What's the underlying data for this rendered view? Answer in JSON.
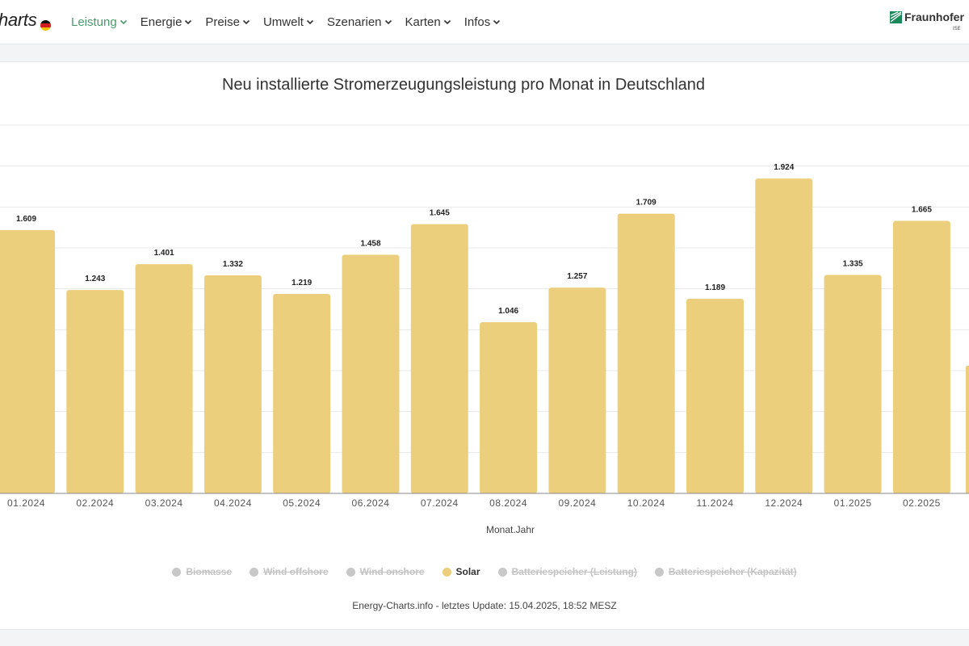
{
  "header": {
    "brand": "harts",
    "nav": [
      {
        "label": "Leistung",
        "active": true
      },
      {
        "label": "Energie",
        "active": false
      },
      {
        "label": "Preise",
        "active": false
      },
      {
        "label": "Umwelt",
        "active": false
      },
      {
        "label": "Szenarien",
        "active": false
      },
      {
        "label": "Karten",
        "active": false
      },
      {
        "label": "Infos",
        "active": false
      }
    ],
    "logo_text": "Fraunhofer",
    "logo_sub": "ISE"
  },
  "chart_data": {
    "type": "bar",
    "title": "Neu installierte Stromerzeugungsleistung pro Monat in Deutschland",
    "xlabel": "Monat.Jahr",
    "ylabel": "",
    "categories": [
      "01.2024",
      "02.2024",
      "03.2024",
      "04.2024",
      "05.2024",
      "06.2024",
      "07.2024",
      "08.2024",
      "09.2024",
      "10.2024",
      "11.2024",
      "12.2024",
      "01.2025",
      "02.2025"
    ],
    "series": [
      {
        "name": "Solar",
        "color": "#eccf7c",
        "values": [
          1.609,
          1.243,
          1.401,
          1.332,
          1.219,
          1.458,
          1.645,
          1.046,
          1.257,
          1.709,
          1.189,
          1.924,
          1.335,
          1.665
        ]
      }
    ],
    "value_labels": [
      "1.609",
      "1.243",
      "1.401",
      "1.332",
      "1.219",
      "1.458",
      "1.645",
      "1.046",
      "1.257",
      "1.709",
      "1.189",
      "1.924",
      "1.335",
      "1.665"
    ],
    "ylim": [
      0,
      2.25
    ],
    "grid": true,
    "legend": [
      {
        "name": "Biomasse",
        "enabled": false
      },
      {
        "name": "Wind offshore",
        "enabled": false
      },
      {
        "name": "Wind onshore",
        "enabled": false
      },
      {
        "name": "Solar",
        "enabled": true
      },
      {
        "name": "Batteriespeicher (Leistung)",
        "enabled": false
      },
      {
        "name": "Batteriespeicher (Kapazität)",
        "enabled": false
      }
    ],
    "legend_placement": "bottom"
  },
  "footer": {
    "credit": "Energy-Charts.info - letztes Update: 15.04.2025, 18:52 MESZ"
  },
  "colors": {
    "accent": "#4a9a6a",
    "bar": "#eccf7c",
    "legend_off": "#c8c8c8"
  }
}
